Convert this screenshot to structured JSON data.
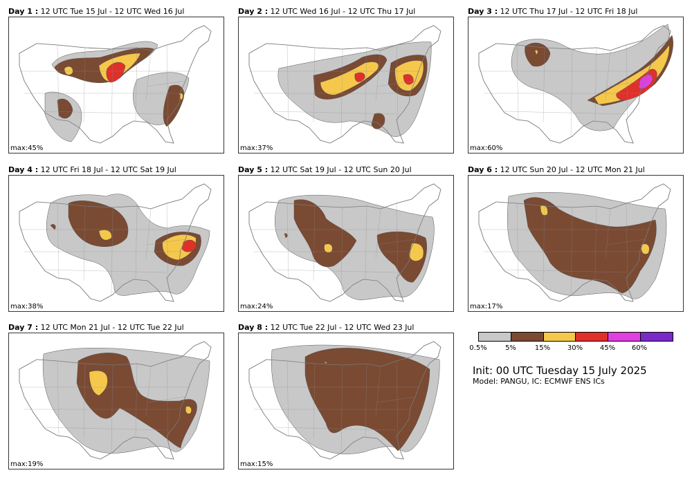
{
  "panels": [
    {
      "day_label": "Day 1 :",
      "range": "12 UTC Tue 15 Jul - 12 UTC Wed 16 Jul",
      "max": "max:45%"
    },
    {
      "day_label": "Day 2 :",
      "range": "12 UTC Wed 16 Jul - 12 UTC Thu 17 Jul",
      "max": "max:37%"
    },
    {
      "day_label": "Day 3 :",
      "range": "12 UTC Thu 17 Jul - 12 UTC Fri 18 Jul",
      "max": "max:60%"
    },
    {
      "day_label": "Day 4 :",
      "range": "12 UTC Fri 18 Jul - 12 UTC Sat 19 Jul",
      "max": "max:38%"
    },
    {
      "day_label": "Day 5 :",
      "range": "12 UTC Sat 19 Jul - 12 UTC Sun 20 Jul",
      "max": "max:24%"
    },
    {
      "day_label": "Day 6 :",
      "range": "12 UTC Sun 20 Jul - 12 UTC Mon 21 Jul",
      "max": "max:17%"
    },
    {
      "day_label": "Day 7 :",
      "range": "12 UTC Mon 21 Jul - 12 UTC Tue 22 Jul",
      "max": "max:19%"
    },
    {
      "day_label": "Day 8 :",
      "range": "12 UTC Tue 22 Jul - 12 UTC Wed 23 Jul",
      "max": "max:15%"
    }
  ],
  "legend": {
    "ticks": [
      "0.5%",
      "5%",
      "15%",
      "30%",
      "45%",
      "60%"
    ],
    "colors": [
      "#c8c8c8",
      "#7a4a33",
      "#f5c84b",
      "#e0302a",
      "#e040e0",
      "#7a2ac8"
    ]
  },
  "init_text": "Init: 00 UTC Tuesday 15 July 2025",
  "model_text": "Model: PANGU, IC: ECMWF ENS ICs"
}
